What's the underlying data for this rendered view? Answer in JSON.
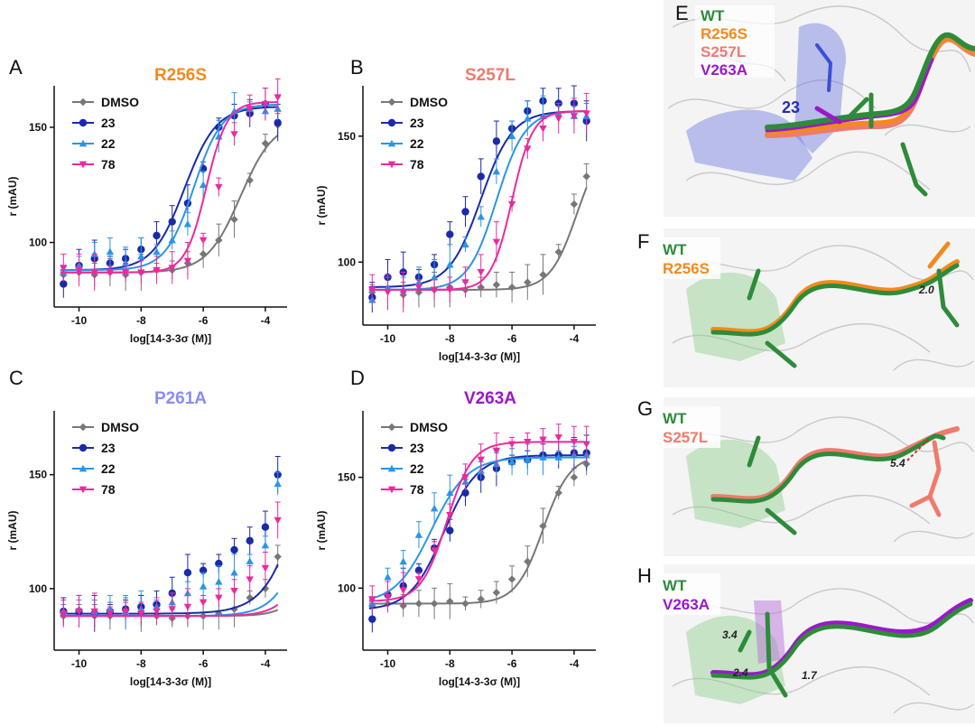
{
  "colors": {
    "DMSO": "#777777",
    "23": "#1a2aa8",
    "22": "#2b95e6",
    "78": "#ea2a9e",
    "WT": "#2e8b3a",
    "R256S": "#f28a1c",
    "S257L": "#ef7a6e",
    "P261A": "#8a8cf0",
    "V263A": "#9a18c9"
  },
  "chart_data": [
    {
      "panel": "A",
      "type": "scatter",
      "title": "R256S",
      "title_color": "#f28a1c",
      "xlabel": "log[14-3-3σ (M)]",
      "ylabel": "r (mAU)",
      "xlim": [
        -10.8,
        -3.3
      ],
      "ylim": [
        72,
        168
      ],
      "xticks": [
        -10,
        -8,
        -6,
        -4
      ],
      "yticks": [
        100,
        150
      ],
      "legend": [
        "DMSO",
        "23",
        "22",
        "78"
      ],
      "legend_position": "top-left",
      "series": [
        {
          "name": "DMSO",
          "bottom": 87,
          "top": 153,
          "logec50": -4.8,
          "hill": 0.8,
          "x": [
            -10.5,
            -10.0,
            -9.5,
            -9.0,
            -8.5,
            -8.0,
            -7.5,
            -7.0,
            -6.5,
            -6.0,
            -5.5,
            -5.0,
            -4.5,
            -4.0,
            -3.6
          ],
          "y": [
            86,
            87,
            86,
            87,
            86,
            87,
            88,
            88,
            91,
            95,
            101,
            110,
            127,
            143,
            151
          ]
        },
        {
          "name": "23",
          "bottom": 88,
          "top": 159,
          "logec50": -6.6,
          "hill": 0.85,
          "x": [
            -10.5,
            -10.0,
            -9.5,
            -9.0,
            -8.5,
            -8.0,
            -7.5,
            -7.0,
            -6.5,
            -6.0,
            -5.5,
            -5.0,
            -4.5,
            -4.0,
            -3.6
          ],
          "y": [
            82,
            90,
            93,
            91,
            93,
            97,
            103,
            109,
            117,
            132,
            150,
            155,
            156,
            160,
            152
          ]
        },
        {
          "name": "22",
          "bottom": 88,
          "top": 160,
          "logec50": -6.3,
          "hill": 0.95,
          "x": [
            -10.5,
            -10.0,
            -9.5,
            -9.0,
            -8.5,
            -8.0,
            -7.5,
            -7.0,
            -6.5,
            -6.0,
            -5.5,
            -5.0,
            -4.5,
            -4.0,
            -3.6
          ],
          "y": [
            87,
            90,
            95,
            96,
            91,
            94,
            96,
            101,
            108,
            125,
            146,
            157,
            158,
            157,
            158
          ]
        },
        {
          "name": "78",
          "bottom": 87,
          "top": 161,
          "logec50": -5.9,
          "hill": 1.3,
          "x": [
            -10.5,
            -10.0,
            -9.5,
            -9.0,
            -8.5,
            -8.0,
            -7.5,
            -7.0,
            -6.5,
            -6.0,
            -5.5,
            -5.0,
            -4.5,
            -4.0,
            -3.6
          ],
          "y": [
            89,
            88,
            87,
            87,
            87,
            87,
            88,
            89,
            92,
            101,
            124,
            147,
            158,
            160,
            163
          ]
        }
      ]
    },
    {
      "panel": "B",
      "type": "scatter",
      "title": "S257L",
      "title_color": "#ef7a6e",
      "xlabel": "log[14-3-3σ (M)]",
      "ylabel": "r (mAU)",
      "xlim": [
        -10.8,
        -3.3
      ],
      "ylim": [
        75,
        170
      ],
      "xticks": [
        -10,
        -8,
        -6,
        -4
      ],
      "yticks": [
        100,
        150
      ],
      "legend": [
        "DMSO",
        "23",
        "22",
        "78"
      ],
      "legend_position": "top-left",
      "series": [
        {
          "name": "DMSO",
          "bottom": 89,
          "top": 150,
          "logec50": -3.9,
          "hill": 1.0,
          "x": [
            -10.5,
            -10.0,
            -9.5,
            -9.0,
            -8.5,
            -8.0,
            -7.5,
            -7.0,
            -6.5,
            -6.0,
            -5.5,
            -5.0,
            -4.5,
            -4.0,
            -3.6
          ],
          "y": [
            88,
            89,
            87,
            88,
            89,
            90,
            89,
            90,
            91,
            90,
            92,
            95,
            104,
            123,
            134
          ]
        },
        {
          "name": "23",
          "bottom": 90,
          "top": 160,
          "logec50": -7.0,
          "hill": 0.85,
          "x": [
            -10.5,
            -10.0,
            -9.5,
            -9.0,
            -8.5,
            -8.0,
            -7.5,
            -7.0,
            -6.5,
            -6.0,
            -5.5,
            -5.0,
            -4.5,
            -4.0,
            -3.6
          ],
          "y": [
            86,
            94,
            96,
            94,
            99,
            111,
            120,
            134,
            148,
            153,
            160,
            164,
            163,
            163,
            156
          ]
        },
        {
          "name": "22",
          "bottom": 89,
          "top": 160,
          "logec50": -6.5,
          "hill": 0.95,
          "x": [
            -10.5,
            -10.0,
            -9.5,
            -9.0,
            -8.5,
            -8.0,
            -7.5,
            -7.0,
            -6.5,
            -6.0,
            -5.5,
            -5.0,
            -4.5,
            -4.0,
            -3.6
          ],
          "y": [
            85,
            90,
            89,
            92,
            94,
            99,
            107,
            118,
            136,
            150,
            157,
            158,
            159,
            158,
            158
          ]
        },
        {
          "name": "78",
          "bottom": 89,
          "top": 160,
          "logec50": -6.0,
          "hill": 1.3,
          "x": [
            -10.5,
            -10.0,
            -9.5,
            -9.0,
            -8.5,
            -8.0,
            -7.5,
            -7.0,
            -6.5,
            -6.0,
            -5.5,
            -5.0,
            -4.5,
            -4.0,
            -3.6
          ],
          "y": [
            89,
            88,
            88,
            90,
            89,
            89,
            92,
            96,
            108,
            123,
            145,
            153,
            157,
            158,
            159
          ]
        }
      ]
    },
    {
      "panel": "C",
      "type": "scatter",
      "title": "P261A",
      "title_color": "#8a8cf0",
      "xlabel": "log[14-3-3σ (M)]",
      "ylabel": "r (mAU)",
      "xlim": [
        -10.8,
        -3.3
      ],
      "ylim": [
        73,
        178
      ],
      "xticks": [
        -10,
        -8,
        -6,
        -4
      ],
      "yticks": [
        100,
        150
      ],
      "legend": [
        "DMSO",
        "23",
        "22",
        "78"
      ],
      "legend_position": "top-left",
      "series": [
        {
          "name": "DMSO",
          "bottom": 88,
          "top": 260,
          "logec50": -1.8,
          "hill": 1.0,
          "x": [
            -10.5,
            -10.0,
            -9.5,
            -9.0,
            -8.5,
            -8.0,
            -7.5,
            -7.0,
            -6.5,
            -6.0,
            -5.5,
            -5.0,
            -4.5,
            -4.0,
            -3.6
          ],
          "y": [
            88,
            89,
            88,
            88,
            89,
            89,
            88,
            87,
            88,
            88,
            89,
            91,
            96,
            100,
            114
          ]
        },
        {
          "name": "23",
          "bottom": 89,
          "top": 260,
          "logec50": -2.4,
          "hill": 0.7,
          "x": [
            -10.5,
            -10.0,
            -9.5,
            -9.0,
            -8.5,
            -8.0,
            -7.5,
            -7.0,
            -6.5,
            -6.0,
            -5.5,
            -5.0,
            -4.5,
            -4.0,
            -3.6
          ],
          "y": [
            90,
            90,
            89,
            90,
            91,
            92,
            93,
            98,
            107,
            108,
            111,
            117,
            121,
            127,
            150
          ]
        },
        {
          "name": "22",
          "bottom": 88,
          "top": 260,
          "logec50": -2.1,
          "hill": 0.8,
          "x": [
            -10.5,
            -10.0,
            -9.5,
            -9.0,
            -8.5,
            -8.0,
            -7.5,
            -7.0,
            -6.5,
            -6.0,
            -5.5,
            -5.0,
            -4.5,
            -4.0,
            -3.6
          ],
          "y": [
            90,
            91,
            90,
            91,
            90,
            91,
            92,
            94,
            98,
            101,
            103,
            107,
            112,
            119,
            146
          ]
        },
        {
          "name": "78",
          "bottom": 88,
          "top": 260,
          "logec50": -1.9,
          "hill": 0.9,
          "x": [
            -10.5,
            -10.0,
            -9.5,
            -9.0,
            -8.5,
            -8.0,
            -7.5,
            -7.0,
            -6.5,
            -6.0,
            -5.5,
            -5.0,
            -4.5,
            -4.0,
            -3.6
          ],
          "y": [
            89,
            90,
            90,
            89,
            90,
            89,
            90,
            91,
            92,
            94,
            96,
            99,
            104,
            109,
            130
          ]
        }
      ]
    },
    {
      "panel": "D",
      "type": "scatter",
      "title": "V263A",
      "title_color": "#9a18c9",
      "xlabel": "log[14-3-3σ (M)]",
      "ylabel": "r (mAU)",
      "xlim": [
        -10.8,
        -3.3
      ],
      "ylim": [
        72,
        180
      ],
      "xticks": [
        -10,
        -8,
        -6,
        -4
      ],
      "yticks": [
        100,
        150
      ],
      "legend": [
        "DMSO",
        "23",
        "22",
        "78"
      ],
      "legend_position": "top-left",
      "series": [
        {
          "name": "DMSO",
          "bottom": 93,
          "top": 160,
          "logec50": -5.0,
          "hill": 1.0,
          "x": [
            -10.5,
            -10.0,
            -9.5,
            -9.0,
            -8.5,
            -8.0,
            -7.5,
            -7.0,
            -6.5,
            -6.0,
            -5.5,
            -5.0,
            -4.5,
            -4.0,
            -3.6
          ],
          "y": [
            92,
            93,
            92,
            93,
            93,
            94,
            93,
            95,
            98,
            104,
            112,
            128,
            143,
            150,
            156
          ]
        },
        {
          "name": "23",
          "bottom": 90,
          "top": 160,
          "logec50": -8.2,
          "hill": 0.8,
          "x": [
            -10.5,
            -10.0,
            -9.5,
            -9.0,
            -8.5,
            -8.0,
            -7.5,
            -7.0,
            -6.5,
            -6.0,
            -5.5,
            -5.0,
            -4.5,
            -4.0,
            -3.6
          ],
          "y": [
            86,
            97,
            101,
            108,
            118,
            126,
            143,
            150,
            154,
            157,
            158,
            160,
            160,
            161,
            161
          ]
        },
        {
          "name": "22",
          "bottom": 93,
          "top": 159,
          "logec50": -8.6,
          "hill": 0.75,
          "x": [
            -10.5,
            -10.0,
            -9.5,
            -9.0,
            -8.5,
            -8.0,
            -7.5,
            -7.0,
            -6.5,
            -6.0,
            -5.5,
            -5.0,
            -4.5,
            -4.0,
            -3.6
          ],
          "y": [
            93,
            105,
            112,
            124,
            136,
            143,
            148,
            153,
            156,
            157,
            158,
            159,
            159,
            160,
            160
          ]
        },
        {
          "name": "78",
          "bottom": 94,
          "top": 166,
          "logec50": -8.1,
          "hill": 1.05,
          "x": [
            -10.5,
            -10.0,
            -9.5,
            -9.0,
            -8.5,
            -8.0,
            -7.5,
            -7.0,
            -6.5,
            -6.0,
            -5.5,
            -5.0,
            -4.5,
            -4.0,
            -3.6
          ],
          "y": [
            95,
            96,
            99,
            104,
            117,
            133,
            150,
            158,
            162,
            165,
            166,
            167,
            168,
            166,
            165
          ]
        }
      ]
    }
  ],
  "structures": [
    {
      "panel": "E",
      "legend": [
        "WT",
        "R256S",
        "S257L",
        "V263A"
      ],
      "labels": [
        "23"
      ]
    },
    {
      "panel": "F",
      "legend": [
        "WT",
        "R256S"
      ],
      "labels": [
        "2.0"
      ]
    },
    {
      "panel": "G",
      "legend": [
        "WT",
        "S257L"
      ],
      "labels": [
        "5.4"
      ]
    },
    {
      "panel": "H",
      "legend": [
        "WT",
        "V263A"
      ],
      "labels": [
        "3.4",
        "2.4",
        "1.7"
      ]
    }
  ]
}
